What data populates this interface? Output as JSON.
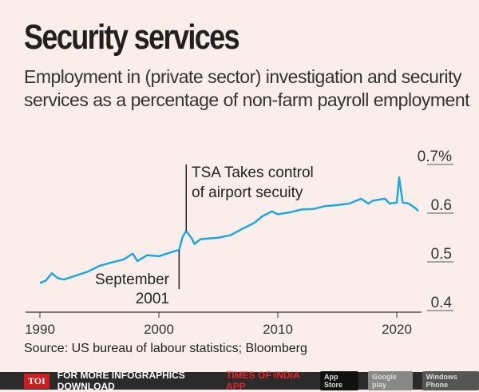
{
  "title": "Security services",
  "subtitle": "Employment in (private sector) investigation and security services as a percentage of non-farm payroll employment",
  "source": "Source: US bureau of labour statistics; Bloomberg",
  "footer": {
    "brand": "TOI",
    "text": "FOR MORE  INFOGRAPHICS DOWNLOAD",
    "app": "TIMES OF INDIA  APP",
    "stores": [
      "App Store",
      "Google play",
      "Windows Phone"
    ]
  },
  "chart_data": {
    "type": "line",
    "xlim": [
      1989.5,
      2023
    ],
    "ylim": [
      0.4,
      0.7
    ],
    "x_ticks": [
      "1990",
      "2000",
      "2010",
      "2020"
    ],
    "y_ticks": [
      "0.4",
      "0.5",
      "0.6",
      "0.7%"
    ],
    "color": "#1ea7e1",
    "points": [
      [
        1990,
        0.455
      ],
      [
        1990.5,
        0.46
      ],
      [
        1991,
        0.475
      ],
      [
        1991.5,
        0.465
      ],
      [
        1992,
        0.462
      ],
      [
        1993,
        0.47
      ],
      [
        1994,
        0.478
      ],
      [
        1995,
        0.49
      ],
      [
        1996,
        0.497
      ],
      [
        1997,
        0.503
      ],
      [
        1997.8,
        0.515
      ],
      [
        1998.2,
        0.5
      ],
      [
        1999,
        0.512
      ],
      [
        2000,
        0.51
      ],
      [
        2001,
        0.518
      ],
      [
        2001.7,
        0.523
      ],
      [
        2002,
        0.55
      ],
      [
        2002.3,
        0.562
      ],
      [
        2002.8,
        0.545
      ],
      [
        2003,
        0.535
      ],
      [
        2003.5,
        0.545
      ],
      [
        2005,
        0.548
      ],
      [
        2006,
        0.553
      ],
      [
        2007,
        0.566
      ],
      [
        2008,
        0.578
      ],
      [
        2008.7,
        0.592
      ],
      [
        2009.5,
        0.602
      ],
      [
        2010,
        0.596
      ],
      [
        2011,
        0.6
      ],
      [
        2012,
        0.606
      ],
      [
        2013,
        0.607
      ],
      [
        2014,
        0.613
      ],
      [
        2015,
        0.615
      ],
      [
        2016,
        0.618
      ],
      [
        2017,
        0.628
      ],
      [
        2017.6,
        0.618
      ],
      [
        2018,
        0.624
      ],
      [
        2019,
        0.628
      ],
      [
        2019.4,
        0.618
      ],
      [
        2020,
        0.62
      ],
      [
        2020.2,
        0.672
      ],
      [
        2020.5,
        0.62
      ],
      [
        2021,
        0.618
      ],
      [
        2021.5,
        0.61
      ],
      [
        2021.8,
        0.603
      ]
    ],
    "annotations": [
      {
        "text": [
          "September",
          "2001"
        ],
        "x": 2001.7
      },
      {
        "text": [
          "TSA Takes control",
          "of airport secuity"
        ],
        "x": 2002.3
      }
    ]
  }
}
